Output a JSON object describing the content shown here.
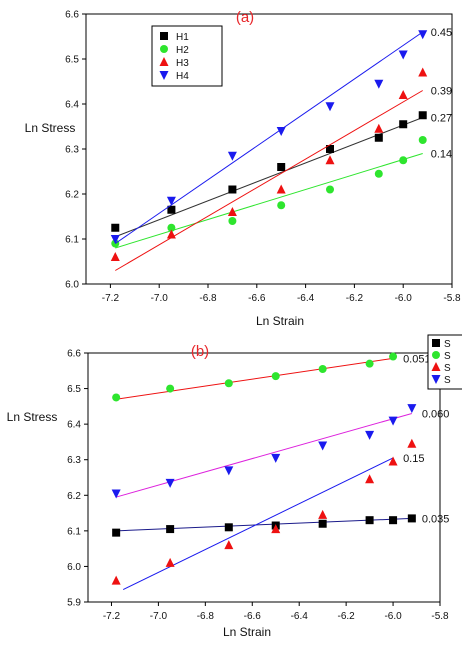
{
  "chart_data": [
    {
      "type": "scatter",
      "panel_label": "(a)",
      "xlabel": "Ln Strain",
      "ylabel": "Ln Stress",
      "xlim": [
        -7.3,
        -5.8
      ],
      "ylim": [
        6.0,
        6.6
      ],
      "xticks": [
        -7.2,
        -7.0,
        -6.8,
        -6.6,
        -6.4,
        -6.2,
        -6.0,
        -5.8
      ],
      "xtick_labels": [
        "-7.2",
        "-7.0",
        "-6.8",
        "-6.6",
        "-6.4",
        "-6.2",
        "-6.0",
        "-5.8"
      ],
      "yticks": [
        6.0,
        6.1,
        6.2,
        6.3,
        6.4,
        6.5,
        6.6
      ],
      "ytick_labels": [
        "6.0",
        "6.1",
        "6.2",
        "6.3",
        "6.4",
        "6.5",
        "6.6"
      ],
      "legend_position": "top-left",
      "series": [
        {
          "name": "H1",
          "marker": "square",
          "color": "#000000",
          "line_color": "#333333",
          "x": [
            -7.18,
            -6.95,
            -6.7,
            -6.5,
            -6.3,
            -6.1,
            -6.0,
            -5.92
          ],
          "y": [
            6.125,
            6.165,
            6.21,
            6.26,
            6.3,
            6.325,
            6.355,
            6.375
          ],
          "fit": [
            [
              -7.18,
              6.105
            ],
            [
              -5.92,
              6.37
            ]
          ],
          "annotation": "0.27"
        },
        {
          "name": "H2",
          "marker": "circle",
          "color": "#2ee52e",
          "line_color": "#2ee52e",
          "x": [
            -7.18,
            -6.95,
            -6.7,
            -6.5,
            -6.3,
            -6.1,
            -6.0,
            -5.92
          ],
          "y": [
            6.09,
            6.125,
            6.14,
            6.175,
            6.21,
            6.245,
            6.275,
            6.32
          ],
          "fit": [
            [
              -7.18,
              6.08
            ],
            [
              -5.92,
              6.29
            ]
          ],
          "annotation": "0.14"
        },
        {
          "name": "H3",
          "marker": "triangle-up",
          "color": "#ee1111",
          "line_color": "#ee1111",
          "x": [
            -7.18,
            -6.95,
            -6.7,
            -6.5,
            -6.3,
            -6.1,
            -6.0,
            -5.92
          ],
          "y": [
            6.06,
            6.11,
            6.16,
            6.21,
            6.275,
            6.345,
            6.42,
            6.47
          ],
          "fit": [
            [
              -7.18,
              6.03
            ],
            [
              -5.92,
              6.43
            ]
          ],
          "annotation": "0.39"
        },
        {
          "name": "H4",
          "marker": "triangle-down",
          "color": "#1a1aee",
          "line_color": "#1a1aee",
          "x": [
            -7.18,
            -6.95,
            -6.7,
            -6.5,
            -6.3,
            -6.1,
            -6.0,
            -5.92
          ],
          "y": [
            6.1,
            6.185,
            6.285,
            6.34,
            6.395,
            6.445,
            6.51,
            6.555
          ],
          "fit": [
            [
              -7.18,
              6.09
            ],
            [
              -5.92,
              6.56
            ]
          ],
          "annotation": "0.45"
        }
      ]
    },
    {
      "type": "scatter",
      "panel_label": "(b)",
      "xlabel": "Ln Strain",
      "ylabel": "Ln Stress",
      "xlim": [
        -7.3,
        -5.8
      ],
      "ylim": [
        5.9,
        6.6
      ],
      "xticks": [
        -7.2,
        -7.0,
        -6.8,
        -6.6,
        -6.4,
        -6.2,
        -6.0,
        -5.8
      ],
      "xtick_labels": [
        "-7.2",
        "-7.0",
        "-6.8",
        "-6.6",
        "-6.4",
        "-6.2",
        "-6.0",
        "-5.8"
      ],
      "yticks": [
        5.9,
        6.0,
        6.1,
        6.2,
        6.3,
        6.4,
        6.5,
        6.6
      ],
      "ytick_labels": [
        "5.9",
        "6.0",
        "6.1",
        "6.2",
        "6.3",
        "6.4",
        "6.5",
        "6.6"
      ],
      "legend_position": "top-right (clipped)",
      "legend_labels": [
        "S",
        "S",
        "S",
        "S"
      ],
      "series": [
        {
          "name": "",
          "marker": "square",
          "color": "#000000",
          "line_color": "#1a1a8a",
          "x": [
            -7.18,
            -6.95,
            -6.7,
            -6.5,
            -6.3,
            -6.1,
            -6.0,
            -5.92
          ],
          "y": [
            6.095,
            6.105,
            6.11,
            6.115,
            6.12,
            6.13,
            6.13,
            6.135
          ],
          "fit": [
            [
              -7.18,
              6.1
            ],
            [
              -5.92,
              6.135
            ]
          ],
          "annotation": "0.035"
        },
        {
          "name": "",
          "marker": "circle",
          "color": "#2ee52e",
          "line_color": "#ee1111",
          "x": [
            -7.18,
            -6.95,
            -6.7,
            -6.5,
            -6.3,
            -6.1,
            -6.0
          ],
          "y": [
            6.475,
            6.5,
            6.515,
            6.535,
            6.555,
            6.57,
            6.59
          ],
          "fit": [
            [
              -7.18,
              6.47
            ],
            [
              -6.0,
              6.585
            ]
          ],
          "annotation": "0.051"
        },
        {
          "name": "",
          "marker": "triangle-up",
          "color": "#ee1111",
          "line_color": "#1a1aee",
          "x": [
            -7.18,
            -6.95,
            -6.7,
            -6.5,
            -6.3,
            -6.1,
            -6.0,
            -5.92
          ],
          "y": [
            5.96,
            6.01,
            6.06,
            6.105,
            6.145,
            6.245,
            6.295,
            6.345
          ],
          "fit": [
            [
              -7.15,
              5.935
            ],
            [
              -6.0,
              6.305
            ]
          ],
          "annotation": "0.15"
        },
        {
          "name": "",
          "marker": "triangle-down",
          "color": "#1a1aee",
          "line_color": "#dd22dd",
          "x": [
            -7.18,
            -6.95,
            -6.7,
            -6.5,
            -6.3,
            -6.1,
            -6.0,
            -5.92
          ],
          "y": [
            6.205,
            6.235,
            6.27,
            6.305,
            6.34,
            6.37,
            6.41,
            6.445
          ],
          "fit": [
            [
              -7.18,
              6.195
            ],
            [
              -5.92,
              6.43
            ]
          ],
          "annotation": "0.060"
        }
      ]
    }
  ]
}
